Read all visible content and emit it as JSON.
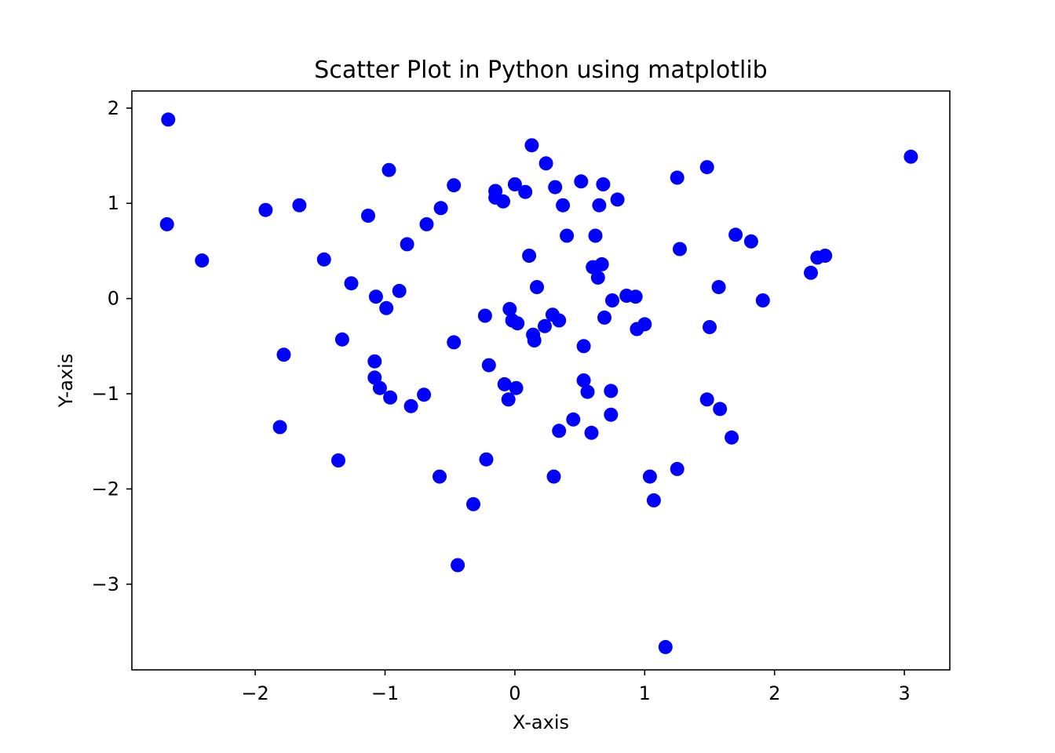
{
  "chart_data": {
    "type": "scatter",
    "title": "Scatter Plot in Python using matplotlib",
    "xlabel": "X-axis",
    "ylabel": "Y-axis",
    "xlim": [
      -2.95,
      3.35
    ],
    "ylim": [
      -3.9,
      2.18
    ],
    "xticks": [
      -2,
      -1,
      0,
      1,
      2,
      3
    ],
    "yticks": [
      2,
      1,
      0,
      -1,
      -2,
      -3
    ],
    "xtick_labels": [
      "−2",
      "−1",
      "0",
      "1",
      "2",
      "3"
    ],
    "ytick_labels": [
      "2",
      "1",
      "0",
      "−1",
      "−2",
      "−3"
    ],
    "grid": false,
    "legend": "none",
    "marker_color": "#0000ff",
    "points": [
      [
        -2.67,
        1.88
      ],
      [
        -2.68,
        0.78
      ],
      [
        -2.41,
        0.4
      ],
      [
        -1.92,
        0.93
      ],
      [
        -1.66,
        0.98
      ],
      [
        -1.47,
        0.41
      ],
      [
        -1.26,
        0.16
      ],
      [
        -1.13,
        0.87
      ],
      [
        -0.97,
        1.35
      ],
      [
        -0.83,
        0.57
      ],
      [
        -0.68,
        0.78
      ],
      [
        -0.57,
        0.95
      ],
      [
        -0.47,
        1.19
      ],
      [
        -1.78,
        -0.59
      ],
      [
        -1.07,
        0.02
      ],
      [
        -0.99,
        -0.1
      ],
      [
        -0.89,
        0.08
      ],
      [
        -1.33,
        -0.43
      ],
      [
        -1.08,
        -0.66
      ],
      [
        -1.08,
        -0.83
      ],
      [
        -1.04,
        -0.94
      ],
      [
        -0.96,
        -1.04
      ],
      [
        -0.8,
        -1.13
      ],
      [
        -0.7,
        -1.01
      ],
      [
        -1.81,
        -1.35
      ],
      [
        -1.36,
        -1.7
      ],
      [
        -0.58,
        -1.87
      ],
      [
        -0.47,
        -0.46
      ],
      [
        -0.44,
        -2.8
      ],
      [
        -0.32,
        -2.16
      ],
      [
        -0.22,
        -1.69
      ],
      [
        -0.2,
        -0.7
      ],
      [
        -0.23,
        -0.18
      ],
      [
        -0.15,
        1.13
      ],
      [
        -0.15,
        1.06
      ],
      [
        -0.09,
        1.02
      ],
      [
        0.0,
        1.2
      ],
      [
        0.08,
        1.12
      ],
      [
        0.13,
        1.61
      ],
      [
        0.24,
        1.42
      ],
      [
        0.31,
        1.17
      ],
      [
        0.37,
        0.98
      ],
      [
        0.51,
        1.23
      ],
      [
        0.68,
        1.2
      ],
      [
        0.79,
        1.04
      ],
      [
        0.65,
        0.98
      ],
      [
        0.4,
        0.66
      ],
      [
        0.62,
        0.66
      ],
      [
        0.11,
        0.45
      ],
      [
        0.6,
        0.33
      ],
      [
        0.67,
        0.36
      ],
      [
        0.64,
        0.22
      ],
      [
        0.17,
        0.12
      ],
      [
        -0.04,
        -0.11
      ],
      [
        -0.02,
        -0.23
      ],
      [
        0.02,
        -0.26
      ],
      [
        0.14,
        -0.38
      ],
      [
        0.15,
        -0.44
      ],
      [
        0.23,
        -0.29
      ],
      [
        0.29,
        -0.17
      ],
      [
        0.34,
        -0.23
      ],
      [
        0.53,
        -0.5
      ],
      [
        0.69,
        -0.2
      ],
      [
        0.75,
        -0.02
      ],
      [
        0.86,
        0.03
      ],
      [
        0.93,
        0.02
      ],
      [
        0.94,
        -0.32
      ],
      [
        1.0,
        -0.27
      ],
      [
        -0.08,
        -0.9
      ],
      [
        0.01,
        -0.94
      ],
      [
        -0.05,
        -1.06
      ],
      [
        0.53,
        -0.86
      ],
      [
        0.56,
        -0.98
      ],
      [
        0.74,
        -0.97
      ],
      [
        0.74,
        -1.22
      ],
      [
        0.45,
        -1.27
      ],
      [
        0.34,
        -1.39
      ],
      [
        0.59,
        -1.41
      ],
      [
        0.3,
        -1.87
      ],
      [
        1.04,
        -1.87
      ],
      [
        1.07,
        -2.12
      ],
      [
        1.25,
        -1.79
      ],
      [
        1.16,
        -3.66
      ],
      [
        1.25,
        1.27
      ],
      [
        1.27,
        0.52
      ],
      [
        1.48,
        1.38
      ],
      [
        1.7,
        0.67
      ],
      [
        1.82,
        0.6
      ],
      [
        1.57,
        0.12
      ],
      [
        1.5,
        -0.3
      ],
      [
        1.91,
        -0.02
      ],
      [
        1.48,
        -1.06
      ],
      [
        1.58,
        -1.16
      ],
      [
        1.67,
        -1.46
      ],
      [
        2.28,
        0.27
      ],
      [
        2.33,
        0.43
      ],
      [
        2.39,
        0.45
      ],
      [
        3.05,
        1.49
      ]
    ]
  }
}
